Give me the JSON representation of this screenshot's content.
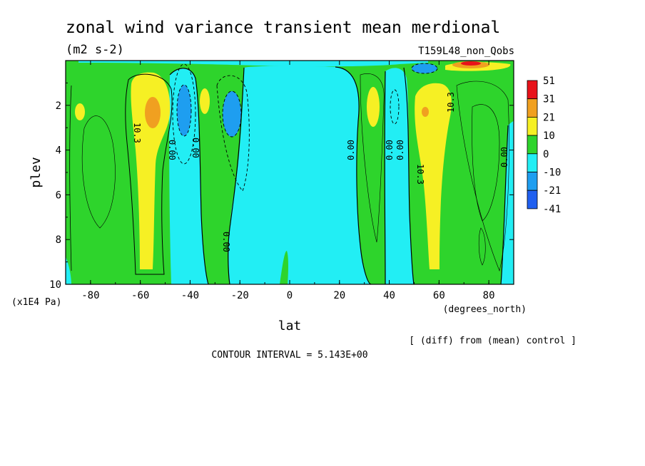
{
  "title": "zonal wind variance transient mean merdional",
  "units": "(m2 s-2)",
  "dataset": "T159L48_non_Qobs",
  "contour_interval": "CONTOUR INTERVAL = 5.143E+00",
  "footnote": "[ (diff) from (mean) control ]",
  "chart_data": {
    "type": "heatmap",
    "title": "zonal wind variance transient mean merdional",
    "subtitle": "(m2 s-2)",
    "xlabel": "lat",
    "x_units": "(degrees_north)",
    "ylabel": "plev",
    "y_units": "(x1E4 Pa)",
    "xlim": [
      -90,
      90
    ],
    "ylim": [
      10,
      0
    ],
    "x_ticks": [
      -80,
      -60,
      -40,
      -20,
      0,
      20,
      40,
      60,
      80
    ],
    "x_tick_labels": [
      "-80",
      "-60",
      "-40",
      "-20",
      "0",
      "20",
      "40",
      "60",
      "80"
    ],
    "y_ticks": [
      2,
      4,
      6,
      8,
      10
    ],
    "y_tick_labels": [
      "2",
      "4",
      "6",
      "8",
      "10"
    ],
    "colorbar": {
      "labels": [
        "51",
        "31",
        "21",
        "10",
        "0",
        "-10",
        "-21",
        "-41"
      ],
      "colors": [
        "#e8121a",
        "#f0a020",
        "#f6f024",
        "#2ed42c",
        "#22eef4",
        "#1e9ef0",
        "#2060f0"
      ]
    },
    "contour_labels": [
      {
        "text": "10.3",
        "lat": -58,
        "plev": 3.3
      },
      {
        "text": "0.00",
        "lat": -47,
        "plev": 4.2
      },
      {
        "text": "0.00",
        "lat": -37,
        "plev": 4.0
      },
      {
        "text": "0.00",
        "lat": -25,
        "plev": 8.1
      },
      {
        "text": "0.00",
        "lat": 24,
        "plev": 3.9
      },
      {
        "text": "0.00",
        "lat": 40,
        "plev": 3.9
      },
      {
        "text": "0.00",
        "lat": 44,
        "plev": 3.9
      },
      {
        "text": "10.3",
        "lat": 64,
        "plev": 2.1
      },
      {
        "text": "10.3",
        "lat": 52,
        "plev": 5.1
      },
      {
        "text": "0.00",
        "lat": 86,
        "plev": 4.3
      }
    ]
  }
}
